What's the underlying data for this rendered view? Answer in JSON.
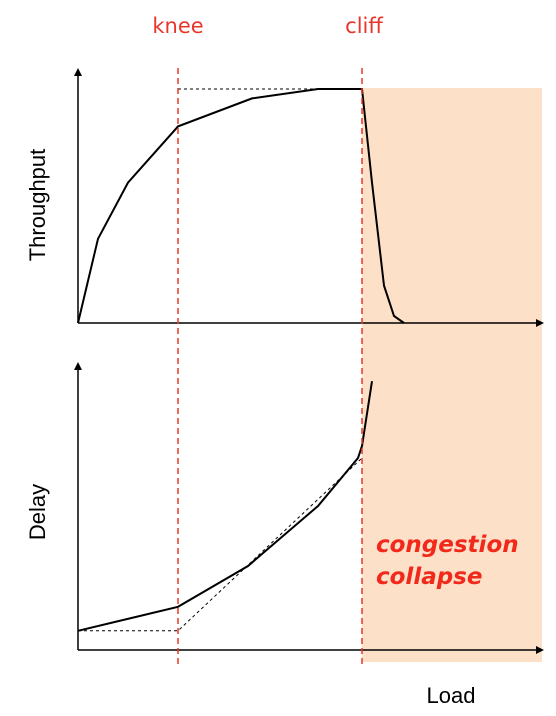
{
  "chart_data": {
    "type": "line",
    "x": {
      "label": "Load",
      "markers": [
        {
          "name": "knee",
          "at": "knee"
        },
        {
          "name": "cliff",
          "at": "cliff"
        }
      ]
    },
    "panels": [
      {
        "name": "throughput",
        "ylabel": "Throughput",
        "series": [
          {
            "values": [
              [
                0,
                0
              ],
              [
                0.1,
                0.36
              ],
              [
                0.25,
                0.6
              ],
              [
                0.5,
                0.84
              ],
              [
                0.87,
                0.96
              ],
              [
                1.2,
                1.0
              ],
              [
                1.42,
                1.0
              ],
              [
                1.47,
                0.6
              ],
              [
                1.53,
                0.16
              ],
              [
                1.58,
                0.03
              ],
              [
                1.63,
                0
              ]
            ]
          }
        ],
        "ideal": [
          [
            0.5,
            1.0
          ],
          [
            1.42,
            1.0
          ]
        ]
      },
      {
        "name": "delay",
        "ylabel": "Delay",
        "series": [
          {
            "values": [
              [
                0,
                0.08
              ],
              [
                0.5,
                0.18
              ],
              [
                0.85,
                0.35
              ],
              [
                1.2,
                0.6
              ],
              [
                1.4,
                0.8
              ],
              [
                1.42,
                0.85
              ],
              [
                1.47,
                1.12
              ]
            ]
          }
        ],
        "ideal": [
          [
            0,
            0.08
          ],
          [
            0.5,
            0.08
          ],
          [
            1.42,
            0.8
          ]
        ]
      }
    ],
    "x_knee": 0.5,
    "x_cliff": 1.42,
    "region": {
      "label_line1": "congestion",
      "label_line2": "collapse",
      "from": "cliff",
      "color": "#fde0c8"
    },
    "colors": {
      "marker": "#e8362b",
      "curve": "#000000",
      "ideal": "#000000"
    }
  }
}
